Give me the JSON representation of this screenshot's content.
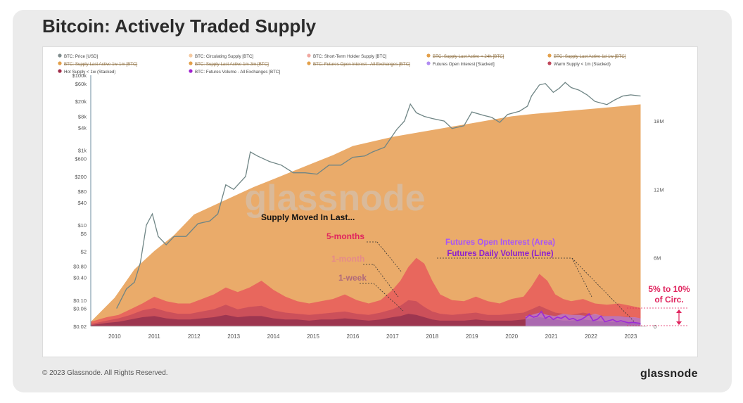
{
  "title": "Bitcoin: Actively Traded Supply",
  "footer": {
    "copyright": "© 2023 Glassnode. All Rights Reserved.",
    "brand": "glassnode"
  },
  "chart_data": {
    "type": "area",
    "watermark": "glassnode",
    "legend": [
      {
        "label": "BTC: Price [USD]",
        "color": "#7f8c8d",
        "struck": false
      },
      {
        "label": "BTC: Circulating Supply [BTC]",
        "color": "#f5c9a0",
        "struck": false
      },
      {
        "label": "BTC: Short-Term Holder Supply [BTC]",
        "color": "#f0a7a0",
        "struck": false
      },
      {
        "label": "BTC: Supply Last Active < 24h [BTC]",
        "color": "#e3a04a",
        "struck": true
      },
      {
        "label": "BTC: Supply Last Active 1d-1w [BTC]",
        "color": "#e3a04a",
        "struck": true
      },
      {
        "label": "BTC: Supply Last Active 1w-1m [BTC]",
        "color": "#e3a04a",
        "struck": true
      },
      {
        "label": "BTC: Supply Last Active 1m-3m [BTC]",
        "color": "#e3a04a",
        "struck": true
      },
      {
        "label": "BTC: Futures Open Interest - All Exchanges [BTC]",
        "color": "#e3a04a",
        "struck": true
      },
      {
        "label": "Futures Open Interest [Stacked]",
        "color": "#b18cf2",
        "struck": false
      },
      {
        "label": "Warm Supply < 1m (Stacked)",
        "color": "#c0475a",
        "struck": false
      },
      {
        "label": "Hot Supply < 1w (Stacked)",
        "color": "#a02d4a",
        "struck": false
      },
      {
        "label": "BTC: Futures Volume - All Exchanges [BTC]",
        "color": "#a020d0",
        "struck": false
      }
    ],
    "x_ticks": [
      "2010",
      "2011",
      "2012",
      "2013",
      "2014",
      "2015",
      "2016",
      "2017",
      "2018",
      "2019",
      "2020",
      "2021",
      "2022",
      "2023"
    ],
    "left_axis": {
      "scale": "log",
      "ticks": [
        "$100k",
        "$60k",
        "$20k",
        "$8k",
        "$4k",
        "$1k",
        "$600",
        "$200",
        "$80",
        "$40",
        "$10",
        "$6",
        "$2",
        "$0.80",
        "$0.40",
        "$0.10",
        "$0.06",
        "$0.02"
      ]
    },
    "right_axis": {
      "ticks": [
        "18M",
        "12M",
        "6M",
        "0"
      ]
    },
    "annotations": {
      "supply_moved": "Supply Moved In Last...",
      "five_months": "5-months",
      "one_month": "1-month",
      "one_week": "1-week",
      "futures_oi": "Futures Open Interest (Area)",
      "futures_vol": "Futures Daily Volume (Line)",
      "pct_line1": "5% to 10%",
      "pct_line2": "of Circ."
    },
    "colors": {
      "circulating": "#e8a25a",
      "five_month": "#e85a5a",
      "one_month": "#c0475a",
      "one_week": "#8e2d4e",
      "futures_oi": "#b48cf0",
      "futures_vol": "#9c2ad8",
      "price": "#6f8585",
      "annot_red": "#e0245e",
      "annot_purple": "#a855f7"
    },
    "series": [
      {
        "name": "BTC: Price [USD]",
        "axis": "left",
        "x": [
          2010.55,
          2010.8,
          2011.0,
          2011.15,
          2011.3,
          2011.45,
          2011.6,
          2011.8,
          2012.0,
          2012.3,
          2012.6,
          2012.9,
          2013.1,
          2013.3,
          2013.5,
          2013.8,
          2013.92,
          2014.1,
          2014.4,
          2014.7,
          2015.0,
          2015.3,
          2015.6,
          2015.9,
          2016.2,
          2016.5,
          2016.8,
          2017.0,
          2017.3,
          2017.6,
          2017.8,
          2017.95,
          2018.1,
          2018.3,
          2018.5,
          2018.8,
          2019.0,
          2019.3,
          2019.5,
          2019.8,
          2020.0,
          2020.2,
          2020.4,
          2020.7,
          2020.9,
          2021.0,
          2021.2,
          2021.35,
          2021.55,
          2021.7,
          2021.85,
          2022.0,
          2022.2,
          2022.4,
          2022.6,
          2022.9,
          2023.1,
          2023.3,
          2023.5,
          2023.75
        ],
        "values": [
          0.06,
          0.2,
          0.3,
          1,
          10,
          20,
          5,
          3,
          5,
          5,
          11,
          13,
          20,
          120,
          90,
          200,
          900,
          700,
          500,
          400,
          250,
          250,
          230,
          400,
          400,
          650,
          700,
          900,
          1200,
          3500,
          6000,
          17000,
          10000,
          8000,
          7000,
          6000,
          3800,
          4500,
          10500,
          8500,
          7500,
          5500,
          9000,
          11000,
          15000,
          28000,
          55000,
          60000,
          35000,
          45000,
          64000,
          47000,
          40000,
          30000,
          20000,
          16500,
          22000,
          28000,
          30000,
          28000
        ]
      },
      {
        "name": "Circulating Supply",
        "axis": "right",
        "x": [
          2009.9,
          2010.5,
          2011,
          2011.5,
          2012,
          2012.5,
          2013,
          2013.5,
          2014,
          2014.5,
          2015,
          2015.5,
          2016,
          2016.5,
          2017,
          2017.5,
          2018,
          2018.5,
          2019,
          2019.5,
          2020,
          2020.5,
          2021,
          2021.5,
          2022,
          2022.5,
          2023,
          2023.75
        ],
        "values": [
          0.4,
          2.5,
          5.0,
          6.6,
          8.0,
          9.8,
          10.6,
          11.4,
          12.2,
          12.9,
          13.6,
          14.3,
          15.0,
          15.8,
          16.2,
          16.6,
          16.9,
          17.2,
          17.5,
          17.8,
          18.1,
          18.4,
          18.6,
          18.75,
          18.9,
          19.05,
          19.2,
          19.45
        ]
      },
      {
        "name": "5-months",
        "axis": "right",
        "x": [
          2009.9,
          2010.3,
          2010.6,
          2010.9,
          2011.2,
          2011.5,
          2011.8,
          2012.1,
          2012.4,
          2012.7,
          2013.0,
          2013.3,
          2013.6,
          2013.9,
          2014.2,
          2014.5,
          2014.8,
          2015.1,
          2015.4,
          2015.7,
          2016.0,
          2016.3,
          2016.6,
          2016.9,
          2017.2,
          2017.5,
          2017.7,
          2017.9,
          2018.1,
          2018.3,
          2018.5,
          2018.7,
          2019.0,
          2019.3,
          2019.6,
          2019.9,
          2020.2,
          2020.5,
          2020.8,
          2021.0,
          2021.2,
          2021.4,
          2021.6,
          2021.8,
          2022.0,
          2022.3,
          2022.6,
          2022.9,
          2023.2,
          2023.5,
          2023.75
        ],
        "values": [
          0.4,
          0.8,
          1.0,
          1.5,
          2.0,
          2.6,
          2.2,
          2.0,
          2.0,
          2.4,
          2.8,
          3.4,
          3.0,
          3.4,
          4.0,
          3.2,
          2.6,
          2.2,
          2.0,
          2.2,
          2.4,
          2.8,
          2.3,
          2.0,
          2.3,
          3.2,
          4.0,
          5.2,
          6.0,
          5.5,
          4.0,
          2.8,
          2.3,
          2.2,
          2.6,
          2.2,
          2.0,
          2.4,
          2.6,
          3.5,
          4.6,
          4.0,
          2.8,
          2.4,
          2.2,
          2.4,
          2.0,
          1.9,
          2.0,
          1.8,
          1.6
        ]
      },
      {
        "name": "1-month",
        "axis": "right",
        "x": [
          2009.9,
          2010.3,
          2010.6,
          2010.9,
          2011.2,
          2011.5,
          2011.8,
          2012.1,
          2012.4,
          2012.7,
          2013.0,
          2013.3,
          2013.6,
          2013.9,
          2014.2,
          2014.5,
          2014.8,
          2015.1,
          2015.4,
          2015.7,
          2016.0,
          2016.3,
          2016.6,
          2016.9,
          2017.2,
          2017.5,
          2017.7,
          2017.9,
          2018.1,
          2018.3,
          2018.5,
          2018.7,
          2019.0,
          2019.3,
          2019.6,
          2019.9,
          2020.2,
          2020.5,
          2020.8,
          2021.0,
          2021.2,
          2021.4,
          2021.6,
          2021.8,
          2022.0,
          2022.3,
          2022.6,
          2022.9,
          2023.2,
          2023.5,
          2023.75
        ],
        "values": [
          0.2,
          0.5,
          0.7,
          1.0,
          1.4,
          1.6,
          1.3,
          1.1,
          1.1,
          1.3,
          1.5,
          1.9,
          1.5,
          1.7,
          1.8,
          1.4,
          1.2,
          1.1,
          1.0,
          1.1,
          1.2,
          1.3,
          1.1,
          1.0,
          1.2,
          1.5,
          1.8,
          2.3,
          2.2,
          1.7,
          1.3,
          1.1,
          1.0,
          1.1,
          1.2,
          1.0,
          1.0,
          1.1,
          1.2,
          1.5,
          1.8,
          1.5,
          1.2,
          1.1,
          1.0,
          1.2,
          1.0,
          0.9,
          0.9,
          0.8,
          0.7
        ]
      },
      {
        "name": "1-week",
        "axis": "right",
        "x": [
          2009.9,
          2010.3,
          2010.6,
          2010.9,
          2011.2,
          2011.5,
          2011.8,
          2012.1,
          2012.4,
          2012.7,
          2013.0,
          2013.3,
          2013.6,
          2013.9,
          2014.2,
          2014.5,
          2014.8,
          2015.1,
          2015.4,
          2015.7,
          2016.0,
          2016.3,
          2016.6,
          2016.9,
          2017.2,
          2017.5,
          2017.7,
          2017.9,
          2018.1,
          2018.3,
          2018.5,
          2018.7,
          2019.0,
          2019.3,
          2019.6,
          2019.9,
          2020.2,
          2020.5,
          2020.8,
          2021.0,
          2021.2,
          2021.4,
          2021.6,
          2021.8,
          2022.0,
          2022.3,
          2022.6,
          2022.9,
          2023.2,
          2023.5,
          2023.75
        ],
        "values": [
          0.1,
          0.3,
          0.4,
          0.6,
          0.8,
          0.9,
          0.7,
          0.6,
          0.6,
          0.7,
          0.8,
          1.0,
          0.8,
          0.9,
          0.9,
          0.7,
          0.6,
          0.6,
          0.5,
          0.6,
          0.6,
          0.7,
          0.6,
          0.5,
          0.6,
          0.8,
          0.9,
          1.1,
          1.0,
          0.8,
          0.6,
          0.5,
          0.5,
          0.5,
          0.6,
          0.5,
          0.5,
          0.5,
          0.6,
          0.7,
          0.8,
          0.7,
          0.6,
          0.5,
          0.5,
          0.6,
          0.5,
          0.4,
          0.4,
          0.4,
          0.3
        ]
      },
      {
        "name": "Futures Open Interest",
        "axis": "right",
        "x": [
          2020.85,
          2021.0,
          2021.2,
          2021.4,
          2021.6,
          2021.8,
          2022.0,
          2022.2,
          2022.4,
          2022.6,
          2022.8,
          2023.0,
          2023.2,
          2023.4,
          2023.6,
          2023.75
        ],
        "values": [
          0.9,
          1.0,
          1.2,
          1.0,
          0.9,
          1.1,
          1.0,
          1.0,
          0.9,
          1.1,
          0.9,
          0.9,
          0.9,
          0.8,
          0.8,
          0.7
        ]
      },
      {
        "name": "Futures Daily Volume",
        "axis": "right",
        "x": [
          2020.85,
          2020.95,
          2021.05,
          2021.15,
          2021.25,
          2021.35,
          2021.45,
          2021.55,
          2021.65,
          2021.75,
          2021.85,
          2021.95,
          2022.05,
          2022.15,
          2022.25,
          2022.35,
          2022.45,
          2022.55,
          2022.65,
          2022.75,
          2022.85,
          2022.95,
          2023.05,
          2023.15,
          2023.25,
          2023.35,
          2023.45,
          2023.55,
          2023.65,
          2023.75
        ],
        "values": [
          0.7,
          1.0,
          0.8,
          0.9,
          1.3,
          0.7,
          0.9,
          0.6,
          0.8,
          0.7,
          0.9,
          0.6,
          0.7,
          0.5,
          0.6,
          0.8,
          1.1,
          0.5,
          0.6,
          0.9,
          0.4,
          0.5,
          0.6,
          0.4,
          0.5,
          0.4,
          0.3,
          0.35,
          0.3,
          0.25
        ]
      }
    ]
  }
}
